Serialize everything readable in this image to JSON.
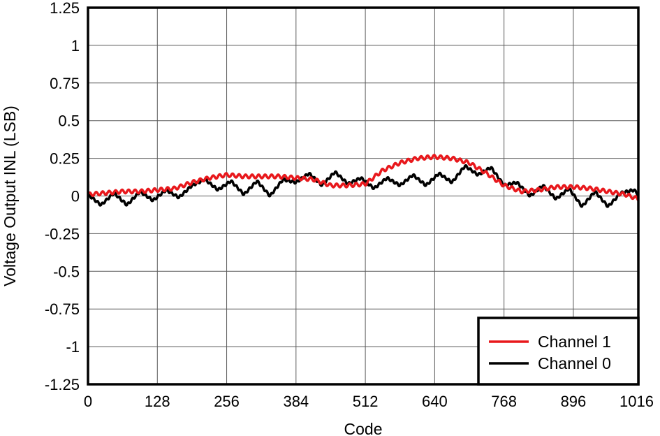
{
  "chart_data": {
    "type": "line",
    "title": "",
    "xlabel": "Code",
    "ylabel": "Voltage Output INL (LSB)",
    "xlim": [
      0,
      1016
    ],
    "ylim": [
      -1.25,
      1.25
    ],
    "x_ticks": [
      "0",
      "128",
      "256",
      "384",
      "512",
      "640",
      "768",
      "896",
      "1016"
    ],
    "y_ticks": [
      "1.25",
      "1",
      "0.75",
      "0.5",
      "0.25",
      "0",
      "-0.25",
      "-0.5",
      "-0.75",
      "-1",
      "-1.25"
    ],
    "grid": true,
    "legend_position": "bottom-right",
    "series": [
      {
        "name": "Channel 1",
        "color": "#e8181c",
        "x": [
          0,
          32,
          64,
          96,
          128,
          160,
          192,
          224,
          256,
          288,
          320,
          352,
          384,
          416,
          448,
          480,
          512,
          544,
          576,
          608,
          640,
          672,
          704,
          736,
          768,
          800,
          832,
          864,
          896,
          928,
          960,
          992,
          1016
        ],
        "y": [
          0.01,
          0.02,
          0.03,
          0.03,
          0.04,
          0.05,
          0.09,
          0.12,
          0.14,
          0.13,
          0.13,
          0.13,
          0.12,
          0.11,
          0.07,
          0.07,
          0.08,
          0.17,
          0.22,
          0.25,
          0.26,
          0.25,
          0.22,
          0.15,
          0.07,
          0.03,
          0.04,
          0.06,
          0.06,
          0.05,
          0.03,
          0.01,
          -0.02
        ]
      },
      {
        "name": "Channel 0",
        "color": "#000000",
        "x": [
          0,
          24,
          48,
          72,
          96,
          120,
          144,
          168,
          192,
          216,
          240,
          264,
          288,
          312,
          336,
          360,
          384,
          408,
          432,
          456,
          480,
          504,
          528,
          552,
          576,
          600,
          624,
          648,
          672,
          696,
          720,
          744,
          768,
          792,
          816,
          840,
          864,
          888,
          912,
          936,
          960,
          984,
          1008,
          1016
        ],
        "y": [
          0.01,
          -0.06,
          0.02,
          -0.06,
          0.03,
          -0.03,
          0.04,
          -0.01,
          0.07,
          0.11,
          0.04,
          0.1,
          0.01,
          0.1,
          0.0,
          0.11,
          0.09,
          0.15,
          0.07,
          0.16,
          0.08,
          0.12,
          0.05,
          0.12,
          0.07,
          0.14,
          0.07,
          0.15,
          0.09,
          0.2,
          0.14,
          0.19,
          0.07,
          0.09,
          0.0,
          0.07,
          -0.02,
          0.05,
          -0.07,
          0.03,
          -0.07,
          0.02,
          0.04,
          0.01
        ]
      }
    ]
  }
}
